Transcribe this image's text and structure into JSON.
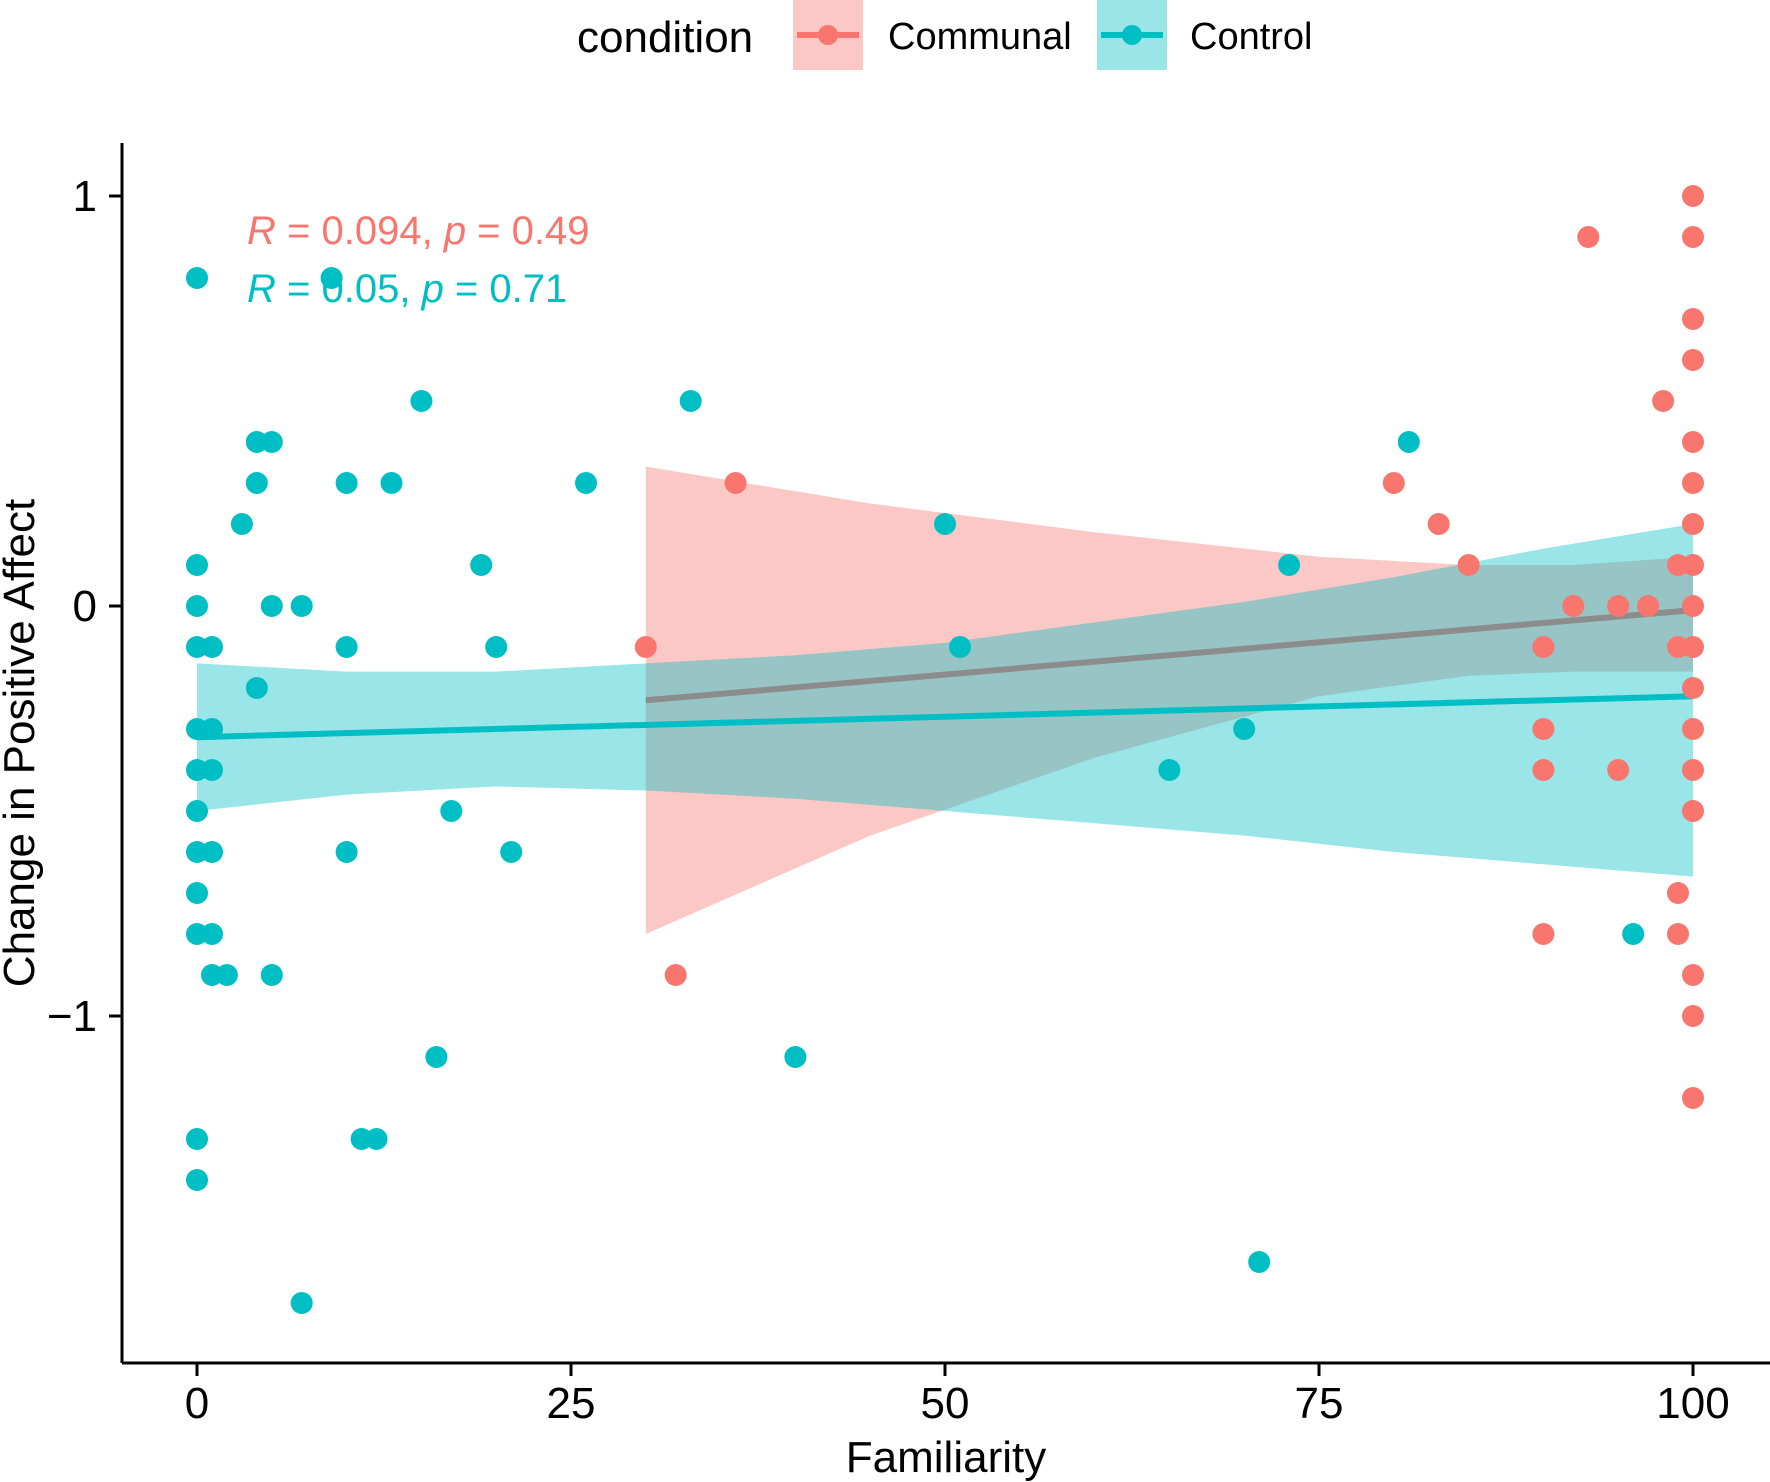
{
  "chart_data": {
    "type": "scatter",
    "title": "",
    "xlabel": "Familiarity",
    "ylabel": "Change in Positive Affect",
    "xlim": [
      -5,
      105
    ],
    "ylim": [
      -1.85,
      1.13
    ],
    "xticks": [
      0,
      25,
      50,
      75,
      100
    ],
    "yticks": [
      1,
      0,
      -1
    ],
    "xtick_labels": [
      "0",
      "25",
      "50",
      "75",
      "100"
    ],
    "ytick_labels": [
      "1",
      "0",
      "−1"
    ],
    "grid": false,
    "legend": {
      "title": "condition",
      "position": "top",
      "entries": [
        "Communal",
        "Control"
      ]
    },
    "series": [
      {
        "name": "Communal",
        "color": "#F8766D",
        "band_color": "#F8766D",
        "annotation": {
          "r_label": "R",
          "r_value": " = 0.094, ",
          "p_label": "p",
          "p_value": " = 0.49"
        },
        "fit": {
          "x0": 30,
          "y0": -0.23,
          "x1": 100,
          "y1": -0.01
        },
        "band": [
          {
            "x": 30,
            "lo": -0.8,
            "hi": 0.34
          },
          {
            "x": 45,
            "lo": -0.56,
            "hi": 0.25
          },
          {
            "x": 60,
            "lo": -0.37,
            "hi": 0.18
          },
          {
            "x": 75,
            "lo": -0.22,
            "hi": 0.12
          },
          {
            "x": 85,
            "lo": -0.17,
            "hi": 0.1
          },
          {
            "x": 92,
            "lo": -0.16,
            "hi": 0.1
          },
          {
            "x": 100,
            "lo": -0.16,
            "hi": 0.12
          }
        ],
        "points": [
          [
            30,
            -0.1
          ],
          [
            32,
            -0.9
          ],
          [
            36,
            0.3
          ],
          [
            80,
            0.3
          ],
          [
            83,
            0.2
          ],
          [
            85,
            0.1
          ],
          [
            90,
            -0.1
          ],
          [
            90,
            -0.3
          ],
          [
            90,
            -0.4
          ],
          [
            90,
            -0.8
          ],
          [
            92,
            0.0
          ],
          [
            93,
            0.9
          ],
          [
            95,
            0.0
          ],
          [
            95,
            -0.4
          ],
          [
            97,
            0.0
          ],
          [
            98,
            0.5
          ],
          [
            99,
            0.1
          ],
          [
            99,
            -0.1
          ],
          [
            99,
            -0.7
          ],
          [
            99,
            -0.8
          ],
          [
            100,
            1.0
          ],
          [
            100,
            0.9
          ],
          [
            100,
            0.7
          ],
          [
            100,
            0.6
          ],
          [
            100,
            0.4
          ],
          [
            100,
            0.3
          ],
          [
            100,
            0.2
          ],
          [
            100,
            0.1
          ],
          [
            100,
            0.0
          ],
          [
            100,
            -0.1
          ],
          [
            100,
            -0.2
          ],
          [
            100,
            -0.3
          ],
          [
            100,
            -0.4
          ],
          [
            100,
            -0.5
          ],
          [
            100,
            -0.9
          ],
          [
            100,
            -1.0
          ],
          [
            100,
            -1.2
          ]
        ]
      },
      {
        "name": "Control",
        "color": "#00BFC4",
        "band_color": "#00BFC4",
        "annotation": {
          "r_label": "R",
          "r_value": " = 0.05, ",
          "p_label": "p",
          "p_value": " = 0.71"
        },
        "fit": {
          "x0": 0,
          "y0": -0.32,
          "x1": 100,
          "y1": -0.22
        },
        "band": [
          {
            "x": 0,
            "lo": -0.5,
            "hi": -0.14
          },
          {
            "x": 10,
            "lo": -0.46,
            "hi": -0.16
          },
          {
            "x": 20,
            "lo": -0.44,
            "hi": -0.16
          },
          {
            "x": 30,
            "lo": -0.45,
            "hi": -0.14
          },
          {
            "x": 40,
            "lo": -0.47,
            "hi": -0.12
          },
          {
            "x": 50,
            "lo": -0.5,
            "hi": -0.09
          },
          {
            "x": 60,
            "lo": -0.53,
            "hi": -0.04
          },
          {
            "x": 70,
            "lo": -0.56,
            "hi": 0.01
          },
          {
            "x": 80,
            "lo": -0.6,
            "hi": 0.07
          },
          {
            "x": 90,
            "lo": -0.63,
            "hi": 0.14
          },
          {
            "x": 100,
            "lo": -0.66,
            "hi": 0.2
          }
        ],
        "points": [
          [
            0,
            0.8
          ],
          [
            0,
            0.1
          ],
          [
            0,
            0.0
          ],
          [
            0,
            -0.1
          ],
          [
            0,
            -0.3
          ],
          [
            0,
            -0.4
          ],
          [
            0,
            -0.5
          ],
          [
            0,
            -0.6
          ],
          [
            0,
            -0.7
          ],
          [
            0,
            -0.8
          ],
          [
            0,
            -1.3
          ],
          [
            0,
            -1.4
          ],
          [
            1,
            -0.1
          ],
          [
            1,
            -0.3
          ],
          [
            1,
            -0.4
          ],
          [
            1,
            -0.6
          ],
          [
            1,
            -0.8
          ],
          [
            1,
            -0.9
          ],
          [
            2,
            -0.9
          ],
          [
            3,
            0.2
          ],
          [
            4,
            0.4
          ],
          [
            4,
            0.3
          ],
          [
            4,
            -0.2
          ],
          [
            5,
            0.4
          ],
          [
            5,
            0.0
          ],
          [
            5,
            -0.9
          ],
          [
            7,
            0.0
          ],
          [
            7,
            -1.7
          ],
          [
            9,
            0.8
          ],
          [
            10,
            0.3
          ],
          [
            10,
            -0.1
          ],
          [
            10,
            -0.6
          ],
          [
            11,
            -1.3
          ],
          [
            12,
            -1.3
          ],
          [
            13,
            0.3
          ],
          [
            15,
            0.5
          ],
          [
            16,
            -1.1
          ],
          [
            17,
            -0.5
          ],
          [
            19,
            0.1
          ],
          [
            20,
            -0.1
          ],
          [
            21,
            -0.6
          ],
          [
            26,
            0.3
          ],
          [
            33,
            0.5
          ],
          [
            40,
            -1.1
          ],
          [
            50,
            0.2
          ],
          [
            51,
            -0.1
          ],
          [
            65,
            -0.4
          ],
          [
            70,
            -0.3
          ],
          [
            71,
            -1.6
          ],
          [
            73,
            0.1
          ],
          [
            81,
            0.4
          ],
          [
            96,
            -0.8
          ]
        ]
      }
    ]
  }
}
